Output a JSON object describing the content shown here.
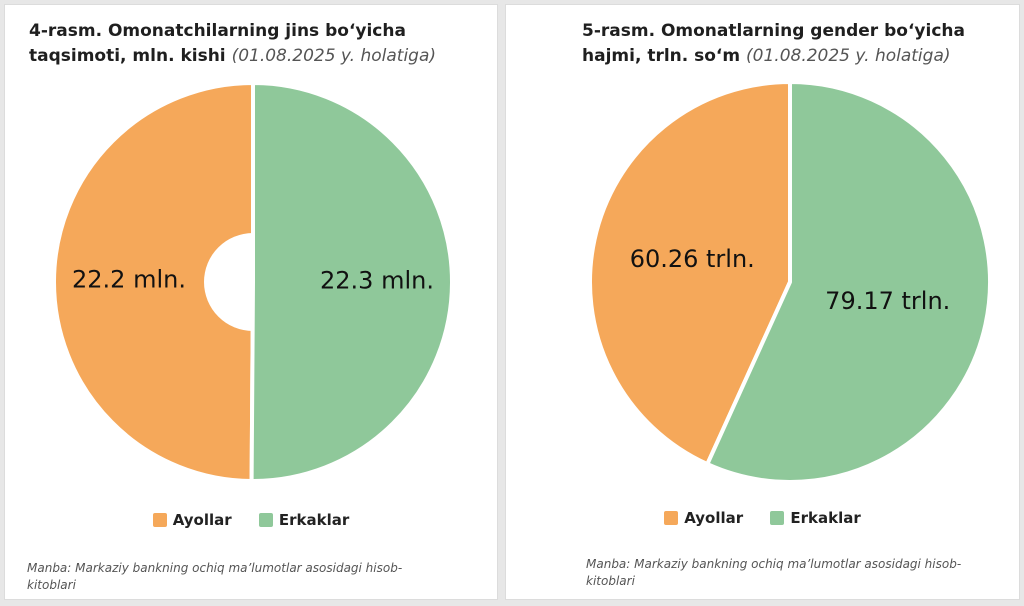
{
  "colors": {
    "women": "#F5A85A",
    "men": "#8FC89A"
  },
  "legend": {
    "women": "Ayollar",
    "men": "Erkaklar"
  },
  "left": {
    "title_bold": "4-rasm. Omonatchilarning jins bo‘yicha taqsimoti, mln. kishi",
    "title_note": "(01.08.2025 y. holatiga)",
    "source": "Manba: Markaziy bankning ochiq ma’lumotlar asosidagi hisob-kitoblari"
  },
  "right": {
    "title_bold": "5-rasm. Omonatlarning gender bo‘yicha hajmi, trln. so‘m",
    "title_note": "(01.08.2025 y. holatiga)",
    "source": "Manba: Markaziy bankning ochiq ma’lumotlar asosidagi hisob-kitoblari"
  },
  "chart_data": [
    {
      "type": "pie",
      "title": "4-rasm. Omonatchilarning jins bo‘yicha taqsimoti, mln. kishi (01.08.2025 y. holatiga)",
      "categories": [
        "Ayollar",
        "Erkaklar"
      ],
      "values": [
        22.2,
        22.3
      ],
      "labels": [
        "22.2 mln.",
        "22.3 mln."
      ],
      "donut": true,
      "legend_position": "bottom"
    },
    {
      "type": "pie",
      "title": "5-rasm. Omonatlarning gender bo‘yicha hajmi, trln. so‘m (01.08.2025 y. holatiga)",
      "categories": [
        "Ayollar",
        "Erkaklar"
      ],
      "values": [
        60.26,
        79.17
      ],
      "labels": [
        "60.26 trln.",
        "79.17 trln."
      ],
      "donut": false,
      "legend_position": "bottom"
    }
  ]
}
